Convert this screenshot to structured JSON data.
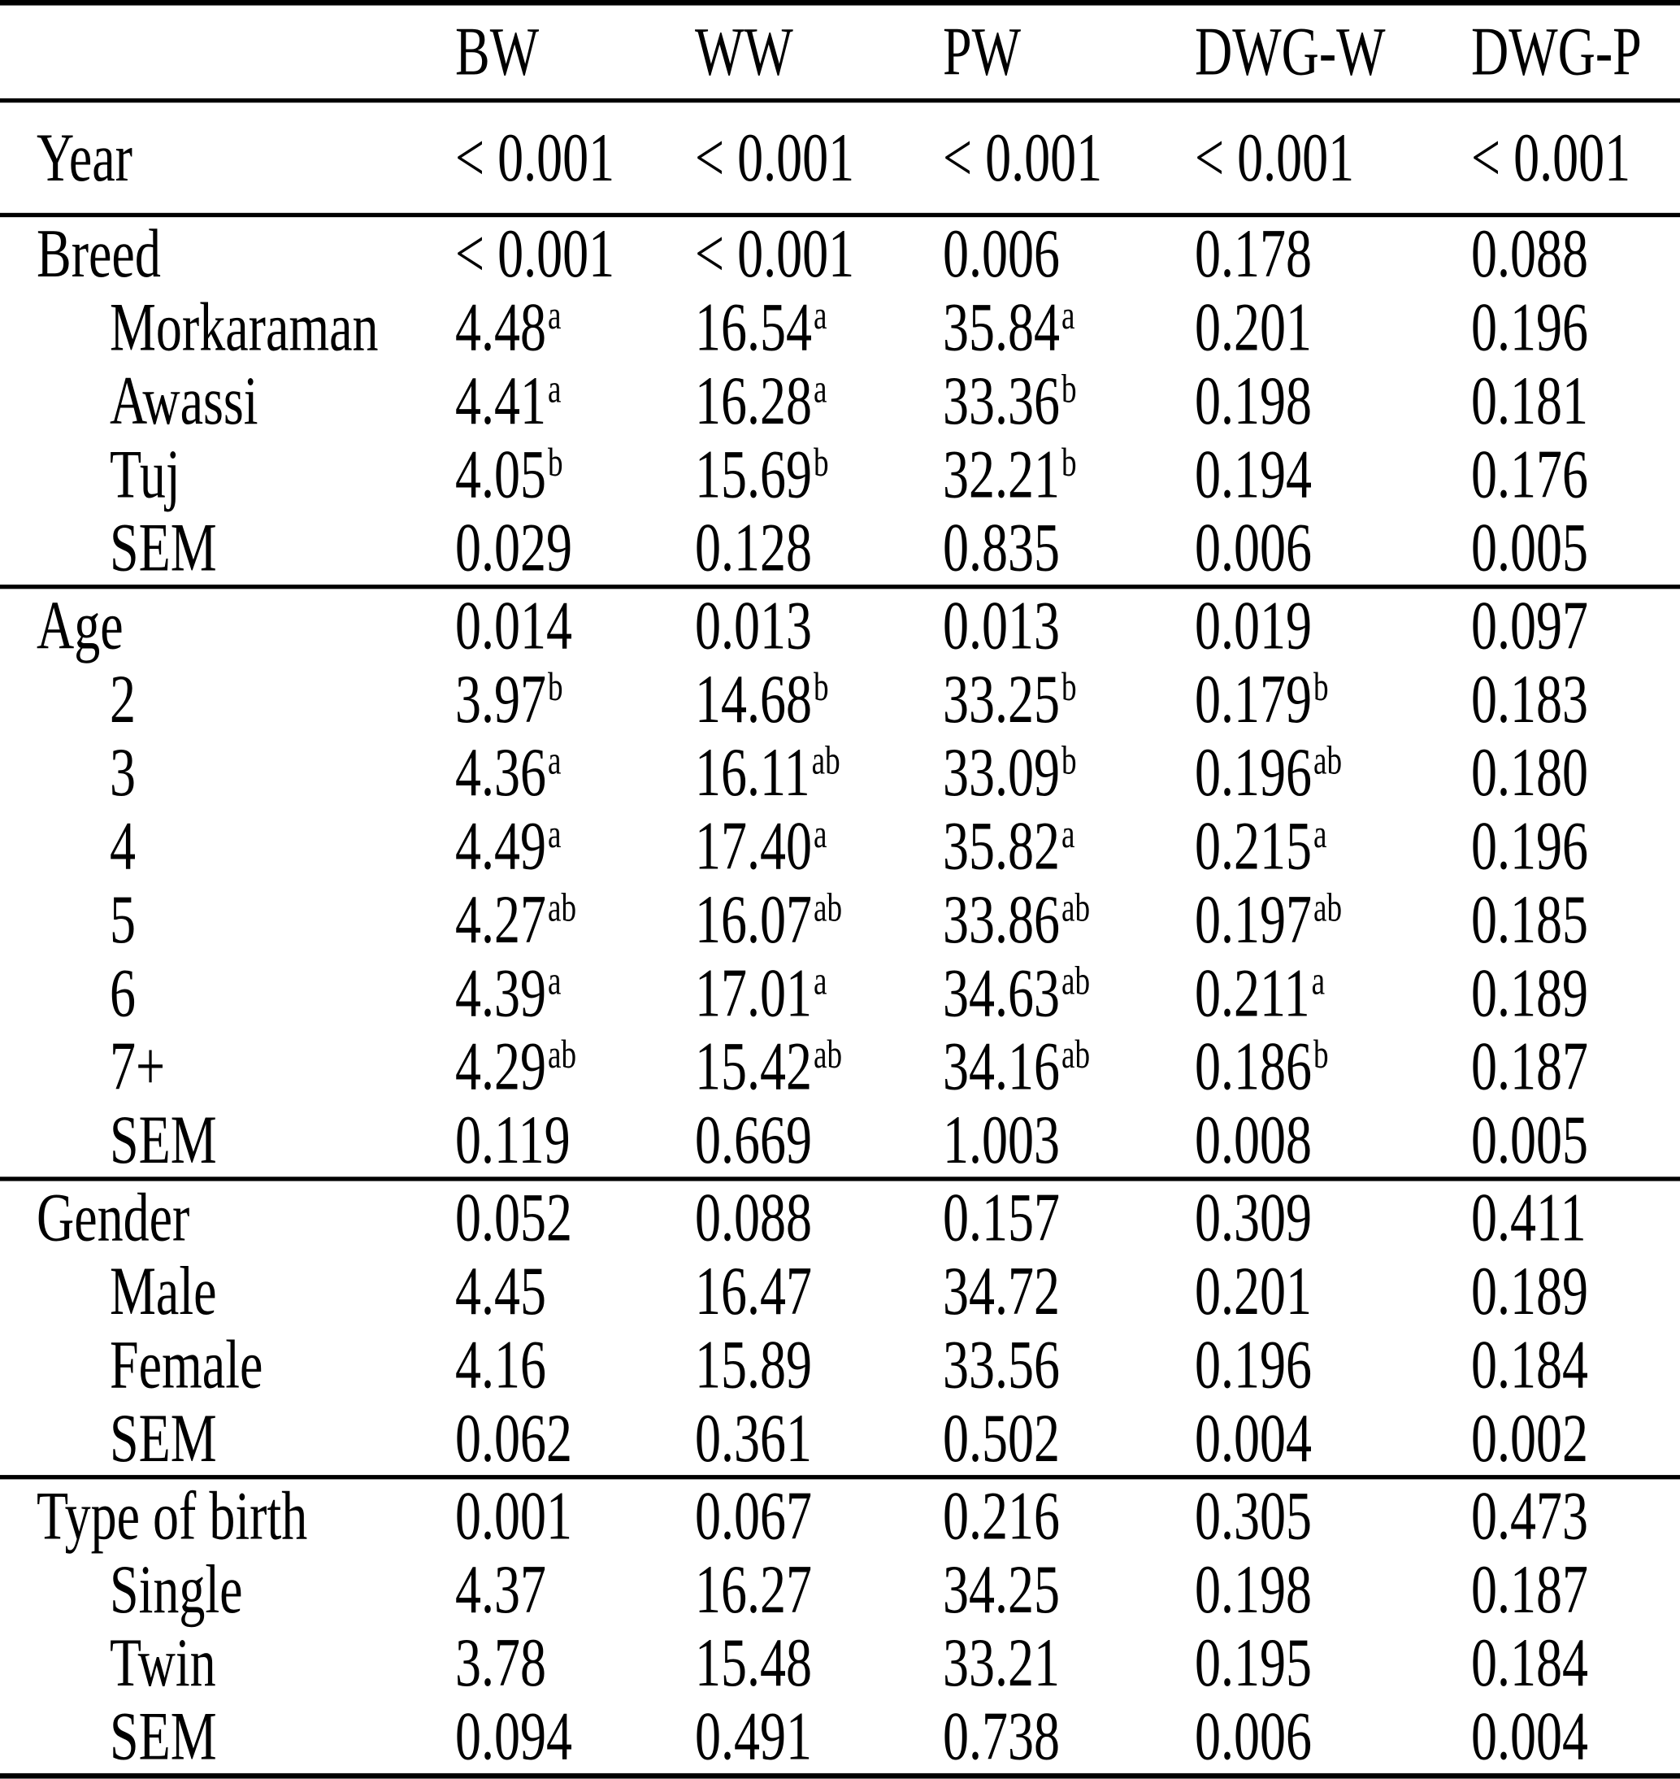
{
  "colors": {
    "background": "#ffffff",
    "text": "#000000",
    "rule": "#000000"
  },
  "table": {
    "header": [
      "",
      "BW",
      "WW",
      "PW",
      "DWG-W",
      "DWG-P"
    ],
    "sections": [
      {
        "name": "year",
        "rows": [
          {
            "label": "Year",
            "indent": false,
            "cells": [
              "< 0.001",
              "< 0.001",
              "< 0.001",
              "< 0.001",
              "< 0.001"
            ]
          }
        ]
      },
      {
        "name": "breed",
        "rows": [
          {
            "label": "Breed",
            "indent": false,
            "cells": [
              "< 0.001",
              "< 0.001",
              "0.006",
              "0.178",
              "0.088"
            ]
          },
          {
            "label": "Morkaraman",
            "indent": true,
            "cells": [
              "4.48^a",
              "16.54^a",
              "35.84^a",
              "0.201",
              "0.196"
            ]
          },
          {
            "label": "Awassi",
            "indent": true,
            "cells": [
              "4.41^a",
              "16.28^a",
              "33.36^b",
              "0.198",
              "0.181"
            ]
          },
          {
            "label": "Tuj",
            "indent": true,
            "cells": [
              "4.05^b",
              "15.69^b",
              "32.21^b",
              "0.194",
              "0.176"
            ]
          },
          {
            "label": "SEM",
            "indent": true,
            "cells": [
              "0.029",
              "0.128",
              "0.835",
              "0.006",
              "0.005"
            ]
          }
        ]
      },
      {
        "name": "age",
        "rows": [
          {
            "label": "Age",
            "indent": false,
            "cells": [
              "0.014",
              "0.013",
              "0.013",
              "0.019",
              "0.097"
            ]
          },
          {
            "label": "2",
            "indent": true,
            "cells": [
              "3.97^b",
              "14.68^b",
              "33.25^b",
              "0.179^b",
              "0.183"
            ]
          },
          {
            "label": "3",
            "indent": true,
            "cells": [
              "4.36^a",
              "16.11^ab",
              "33.09^b",
              "0.196^ab",
              "0.180"
            ]
          },
          {
            "label": "4",
            "indent": true,
            "cells": [
              "4.49^a",
              "17.40^a",
              "35.82^a",
              "0.215^a",
              "0.196"
            ]
          },
          {
            "label": "5",
            "indent": true,
            "cells": [
              "4.27^ab",
              "16.07^ab",
              "33.86^ab",
              "0.197^ab",
              "0.185"
            ]
          },
          {
            "label": "6",
            "indent": true,
            "cells": [
              "4.39^a",
              "17.01^a",
              "34.63^ab",
              "0.211^a",
              "0.189"
            ]
          },
          {
            "label": "7+",
            "indent": true,
            "cells": [
              "4.29^ab",
              "15.42^ab",
              "34.16^ab",
              "0.186^b",
              "0.187"
            ]
          },
          {
            "label": "SEM",
            "indent": true,
            "cells": [
              "0.119",
              "0.669",
              "1.003",
              "0.008",
              "0.005"
            ]
          }
        ]
      },
      {
        "name": "gender",
        "rows": [
          {
            "label": "Gender",
            "indent": false,
            "cells": [
              "0.052",
              "0.088",
              "0.157",
              "0.309",
              "0.411"
            ]
          },
          {
            "label": "Male",
            "indent": true,
            "cells": [
              "4.45",
              "16.47",
              "34.72",
              "0.201",
              "0.189"
            ]
          },
          {
            "label": "Female",
            "indent": true,
            "cells": [
              "4.16",
              "15.89",
              "33.56",
              "0.196",
              "0.184"
            ]
          },
          {
            "label": "SEM",
            "indent": true,
            "cells": [
              "0.062",
              "0.361",
              "0.502",
              "0.004",
              "0.002"
            ]
          }
        ]
      },
      {
        "name": "type-of-birth",
        "rows": [
          {
            "label": "Type of birth",
            "indent": false,
            "cells": [
              "0.001",
              "0.067",
              "0.216",
              "0.305",
              "0.473"
            ]
          },
          {
            "label": "Single",
            "indent": true,
            "cells": [
              "4.37",
              "16.27",
              "34.25",
              "0.198",
              "0.187"
            ]
          },
          {
            "label": "Twin",
            "indent": true,
            "cells": [
              "3.78",
              "15.48",
              "33.21",
              "0.195",
              "0.184"
            ]
          },
          {
            "label": "SEM",
            "indent": true,
            "cells": [
              "0.094",
              "0.491",
              "0.738",
              "0.006",
              "0.004"
            ]
          }
        ]
      }
    ]
  }
}
